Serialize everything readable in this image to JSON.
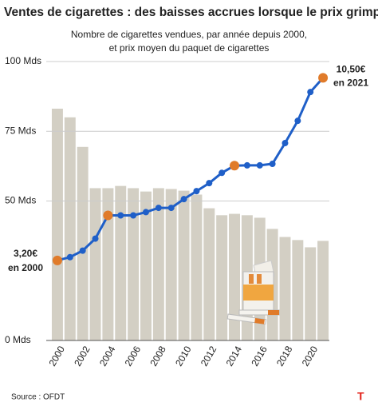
{
  "chart_data": {
    "type": "bar",
    "title": "Ventes de cigarettes : des baisses accrues lorsque le prix grimpe",
    "subtitle": [
      "Nombre de cigarettes vendues, par année depuis 2000,",
      "et prix moyen du paquet de cigarettes"
    ],
    "categories": [
      "2000",
      null,
      "2002",
      null,
      "2004",
      null,
      "2006",
      null,
      "2008",
      null,
      "2010",
      null,
      "2012",
      null,
      "2014",
      null,
      "2016",
      null,
      "2018",
      null,
      "2020",
      null
    ],
    "series": [
      {
        "name": "Cigarettes vendues",
        "color": "#d3cfc4",
        "values": [
          83.1,
          80,
          69.4,
          54.6,
          54.6,
          55.4,
          54.6,
          53.4,
          54.6,
          54.3,
          53.7,
          52.3,
          47.4,
          44.9,
          45.4,
          44.9,
          44,
          40,
          37.1,
          36,
          33.4,
          35.7
        ]
      },
      {
        "name": "Prix moyen du paquet",
        "type": "line",
        "axis": "y2",
        "color": "#1f5fc8",
        "highlight_color": "#e07b2a",
        "highlight": [
          0,
          4,
          14,
          21
        ],
        "values": [
          3.2,
          3.33,
          3.59,
          4.07,
          5.0,
          5.0,
          5.0,
          5.13,
          5.3,
          5.3,
          5.65,
          5.97,
          6.29,
          6.7,
          6.99,
          7.0,
          7.0,
          7.06,
          7.89,
          8.78,
          9.93,
          10.5
        ]
      }
    ],
    "ylim": [
      0,
      100
    ],
    "yticks": [
      {
        "value": 0,
        "label": "0 Mds"
      },
      {
        "value": 50,
        "label": "50 Mds"
      },
      {
        "value": 75,
        "label": "75 Mds"
      },
      {
        "value": 100,
        "label": "100 Mds"
      }
    ],
    "y2lim": [
      0,
      11.15
    ],
    "grid": true,
    "annotations": [
      {
        "lines": [
          "3,20€",
          "en 2000"
        ],
        "index": 0
      },
      {
        "lines": [
          "10,50€",
          "en 2021"
        ],
        "index": 21
      }
    ],
    "source": "Source : OFDT",
    "logo": "T"
  }
}
